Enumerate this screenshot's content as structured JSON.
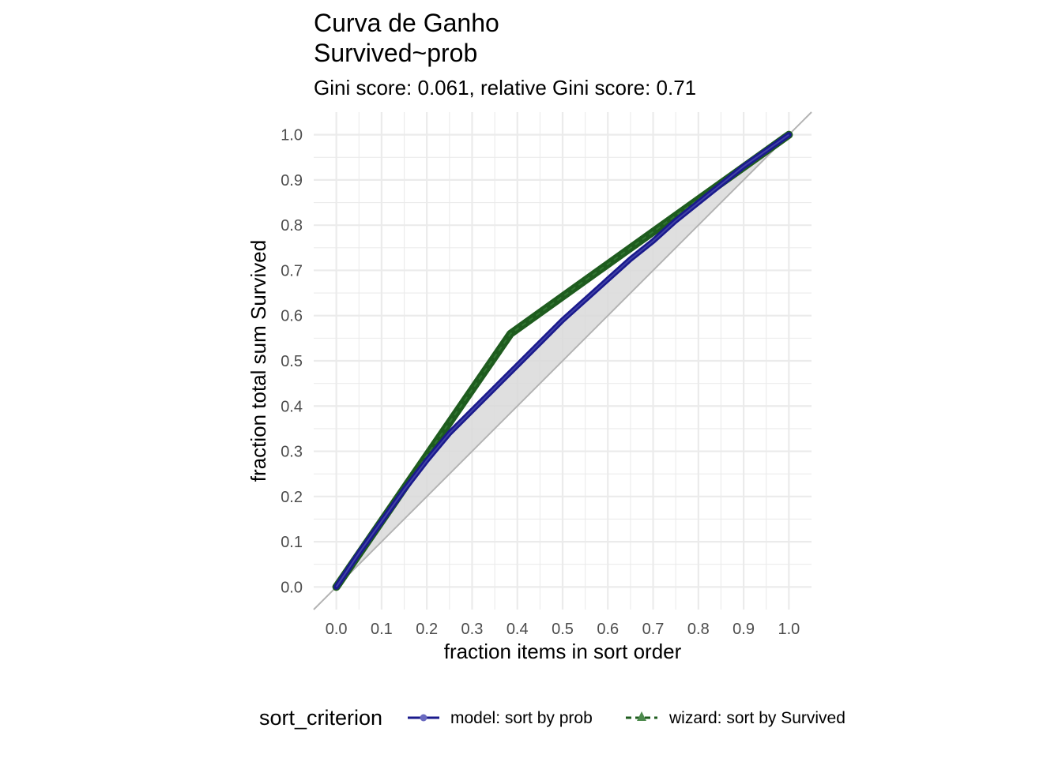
{
  "chart_data": {
    "type": "line",
    "title": "Curva de Ganho",
    "title_line2": "Survived~prob",
    "subtitle": "Gini score: 0.061, relative Gini score: 0.71",
    "xlabel": "fraction items in sort order",
    "ylabel": "fraction total sum Survived",
    "xlim": [
      -0.05,
      1.05
    ],
    "ylim": [
      -0.05,
      1.05
    ],
    "x_ticks": [
      "0.0",
      "0.1",
      "0.2",
      "0.3",
      "0.4",
      "0.5",
      "0.6",
      "0.7",
      "0.8",
      "0.9",
      "1.0"
    ],
    "y_ticks": [
      "0.0",
      "0.1",
      "0.2",
      "0.3",
      "0.4",
      "0.5",
      "0.6",
      "0.7",
      "0.8",
      "0.9",
      "1.0"
    ],
    "grid": true,
    "legend": {
      "title": "sort_criterion",
      "position": "bottom",
      "entries": [
        "model: sort by prob",
        "wizard: sort by Survived"
      ]
    },
    "reference_line": {
      "x": [
        -0.05,
        1.05
      ],
      "y": [
        -0.05,
        1.05
      ],
      "color": "#b3b3b3"
    },
    "series": [
      {
        "name": "model: sort by prob",
        "color": "#1a1a8c",
        "style": "solid",
        "marker": "circle",
        "x": [
          0.0,
          0.05,
          0.1,
          0.15,
          0.2,
          0.25,
          0.3,
          0.35,
          0.4,
          0.45,
          0.5,
          0.55,
          0.6,
          0.65,
          0.7,
          0.75,
          0.8,
          0.85,
          0.9,
          0.95,
          1.0
        ],
        "y": [
          0.0,
          0.075,
          0.145,
          0.215,
          0.28,
          0.34,
          0.39,
          0.44,
          0.49,
          0.54,
          0.59,
          0.635,
          0.68,
          0.725,
          0.765,
          0.81,
          0.85,
          0.89,
          0.93,
          0.965,
          1.0
        ]
      },
      {
        "name": "wizard: sort by Survived",
        "color": "#1e5c1e",
        "style": "dashed",
        "marker": "triangle",
        "x": [
          0.0,
          0.385,
          1.0
        ],
        "y": [
          0.0,
          0.56,
          1.0
        ]
      }
    ],
    "colors": {
      "model": "#1a1a8c",
      "wizard": "#1e5c1e",
      "ribbon": "#d9d9d9",
      "grid": "#ebebeb",
      "diagonal": "#b3b3b3"
    }
  }
}
